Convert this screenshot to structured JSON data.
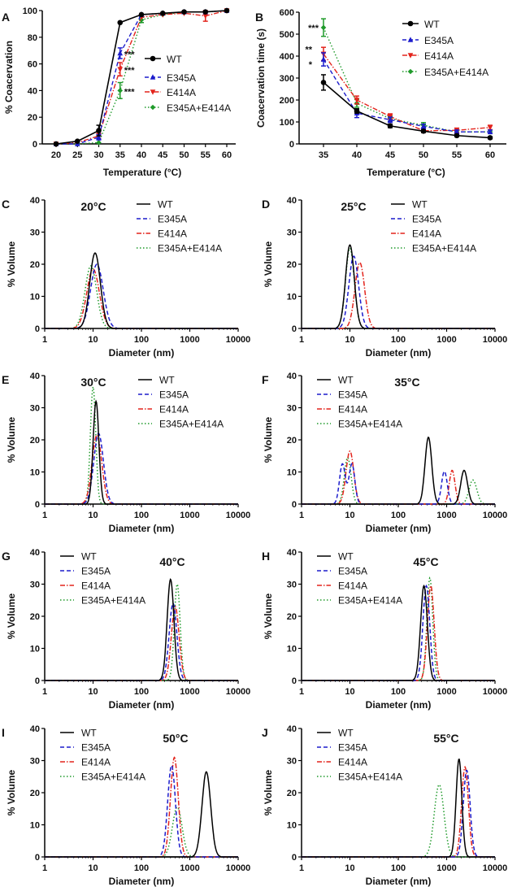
{
  "colors": {
    "WT": "#000000",
    "E345A": "#1c1ccc",
    "E414A": "#e3241c",
    "E345A+E414A": "#1f9a2a"
  },
  "series_names": [
    "WT",
    "E345A",
    "E414A",
    "E345A+E414A"
  ],
  "chart_data": [
    {
      "panel": "A",
      "type": "line",
      "xlabel": "Temperature (°C)",
      "ylabel": "% Coacervation",
      "x": [
        20,
        25,
        30,
        35,
        40,
        45,
        50,
        55,
        60
      ],
      "xticks": [
        20,
        25,
        30,
        35,
        40,
        45,
        50,
        55,
        60
      ],
      "ylim": [
        0,
        100
      ],
      "yticks": [
        0,
        20,
        40,
        60,
        80,
        100
      ],
      "legend": "center-right",
      "series": [
        {
          "name": "WT",
          "values": [
            0,
            2,
            10,
            91,
            97,
            98,
            99,
            99,
            100
          ],
          "errors": [
            0,
            1,
            4,
            1,
            1,
            1,
            1,
            1,
            1
          ]
        },
        {
          "name": "E345A",
          "values": [
            0,
            0,
            5,
            68,
            97,
            98,
            99,
            99,
            100
          ],
          "errors": [
            0,
            0,
            2,
            4,
            1,
            1,
            1,
            1,
            1
          ]
        },
        {
          "name": "E414A",
          "values": [
            0,
            1,
            6,
            56,
            95,
            97,
            98,
            96,
            100
          ],
          "errors": [
            0,
            0,
            2,
            5,
            1,
            1,
            1,
            4,
            1
          ]
        },
        {
          "name": "E345A+E414A",
          "values": [
            0,
            0,
            1,
            40,
            93,
            97,
            99,
            99,
            100
          ],
          "errors": [
            0,
            0,
            1,
            6,
            2,
            1,
            1,
            1,
            1
          ]
        }
      ],
      "annotations": [
        {
          "x": 35,
          "y": 68,
          "text": "***"
        },
        {
          "x": 35,
          "y": 56,
          "text": "***"
        },
        {
          "x": 35,
          "y": 40,
          "text": "***"
        }
      ]
    },
    {
      "panel": "B",
      "type": "line",
      "xlabel": "Temperature (°C)",
      "ylabel": "Coacervation time (s)",
      "x": [
        35,
        40,
        45,
        50,
        55,
        60
      ],
      "xticks": [
        35,
        40,
        45,
        50,
        55,
        60
      ],
      "ylim": [
        0,
        600
      ],
      "yticks": [
        0,
        100,
        200,
        300,
        400,
        500,
        600
      ],
      "legend": "top-right",
      "series": [
        {
          "name": "WT",
          "values": [
            280,
            150,
            82,
            58,
            38,
            28
          ],
          "errors": [
            35,
            10,
            8,
            6,
            5,
            5
          ]
        },
        {
          "name": "E345A",
          "values": [
            385,
            140,
            110,
            80,
            55,
            55
          ],
          "errors": [
            30,
            20,
            12,
            10,
            8,
            8
          ]
        },
        {
          "name": "E414A",
          "values": [
            410,
            200,
            125,
            60,
            62,
            75
          ],
          "errors": [
            30,
            18,
            12,
            8,
            10,
            10
          ]
        },
        {
          "name": "E345A+E414A",
          "values": [
            530,
            185,
            115,
            85,
            55,
            55
          ],
          "errors": [
            40,
            18,
            12,
            12,
            8,
            8
          ]
        }
      ],
      "annotations": [
        {
          "x": 35,
          "y": 530,
          "text": "***"
        },
        {
          "x": 35,
          "y": 410,
          "text": "**"
        },
        {
          "x": 35,
          "y": 385,
          "text": "*"
        }
      ]
    },
    {
      "panel": "C",
      "type": "line",
      "title": "20°C",
      "xlabel": "Diameter (nm)",
      "ylabel": "% Volume",
      "xscale": "log",
      "xlim": [
        1,
        10000
      ],
      "xticks": [
        1,
        10,
        100,
        1000,
        10000
      ],
      "ylim": [
        0,
        40
      ],
      "yticks": [
        0,
        10,
        20,
        30,
        40
      ],
      "legend": "top-right",
      "series": [
        {
          "name": "WT",
          "peaks": [
            [
              11,
              23.5,
              0.11
            ]
          ]
        },
        {
          "name": "E345A",
          "peaks": [
            [
              12,
              20,
              0.13
            ]
          ]
        },
        {
          "name": "E414A",
          "peaks": [
            [
              10,
              18.5,
              0.13
            ]
          ]
        },
        {
          "name": "E345A+E414A",
          "peaks": [
            [
              9,
              19.5,
              0.12
            ]
          ]
        }
      ]
    },
    {
      "panel": "D",
      "type": "line",
      "title": "25°C",
      "xlabel": "Diameter (nm)",
      "ylabel": "% Volume",
      "xscale": "log",
      "xlim": [
        1,
        10000
      ],
      "xticks": [
        1,
        10,
        100,
        1000,
        10000
      ],
      "ylim": [
        0,
        40
      ],
      "yticks": [
        0,
        10,
        20,
        30,
        40
      ],
      "legend": "top-right",
      "series": [
        {
          "name": "WT",
          "peaks": [
            [
              10,
              26,
              0.09
            ]
          ]
        },
        {
          "name": "E345A",
          "peaks": [
            [
              12,
              22.5,
              0.1
            ]
          ]
        },
        {
          "name": "E414A",
          "peaks": [
            [
              16,
              20.5,
              0.1
            ]
          ]
        },
        {
          "name": "E345A+E414A",
          "peaks": [
            [
              10,
              25,
              0.09
            ]
          ]
        }
      ]
    },
    {
      "panel": "E",
      "type": "line",
      "title": "30°C",
      "xlabel": "Diameter (nm)",
      "ylabel": "% Volume",
      "xscale": "log",
      "xlim": [
        1,
        10000
      ],
      "xticks": [
        1,
        10,
        100,
        1000,
        10000
      ],
      "ylim": [
        0,
        40
      ],
      "yticks": [
        0,
        10,
        20,
        30,
        40
      ],
      "legend": "top-right",
      "series": [
        {
          "name": "WT",
          "peaks": [
            [
              11.5,
              32,
              0.06
            ]
          ]
        },
        {
          "name": "E345A",
          "peaks": [
            [
              13,
              22,
              0.1
            ]
          ]
        },
        {
          "name": "E414A",
          "peaks": [
            [
              12,
              21.5,
              0.1
            ]
          ]
        },
        {
          "name": "E345A+E414A",
          "peaks": [
            [
              10,
              36.5,
              0.055
            ]
          ]
        }
      ]
    },
    {
      "panel": "F",
      "type": "line",
      "title": "35°C",
      "xlabel": "Diameter (nm)",
      "ylabel": "% Volume",
      "xscale": "log",
      "xlim": [
        1,
        10000
      ],
      "xticks": [
        1,
        10,
        100,
        1000,
        10000
      ],
      "ylim": [
        0,
        40
      ],
      "yticks": [
        0,
        10,
        20,
        30,
        40
      ],
      "legend": "top-left",
      "series": [
        {
          "name": "WT",
          "peaks": [
            [
              420,
              20.8,
              0.07
            ],
            [
              2300,
              10.5,
              0.07
            ]
          ]
        },
        {
          "name": "E345A",
          "peaks": [
            [
              7,
              12.5,
              0.06
            ],
            [
              11,
              12.5,
              0.06
            ],
            [
              900,
              10.2,
              0.06
            ]
          ]
        },
        {
          "name": "E414A",
          "peaks": [
            [
              10,
              16.5,
              0.08
            ],
            [
              1300,
              10.5,
              0.06
            ]
          ]
        },
        {
          "name": "E345A+E414A",
          "peaks": [
            [
              9,
              14.5,
              0.07
            ],
            [
              3500,
              7.5,
              0.08
            ]
          ]
        }
      ]
    },
    {
      "panel": "G",
      "type": "line",
      "title": "40°C",
      "xlabel": "Diameter (nm)",
      "ylabel": "% Volume",
      "xscale": "log",
      "xlim": [
        1,
        10000
      ],
      "xticks": [
        1,
        10,
        100,
        1000,
        10000
      ],
      "ylim": [
        0,
        40
      ],
      "yticks": [
        0,
        10,
        20,
        30,
        40
      ],
      "legend": "top-left",
      "series": [
        {
          "name": "WT",
          "peaks": [
            [
              400,
              31.5,
              0.07
            ]
          ]
        },
        {
          "name": "E345A",
          "peaks": [
            [
              450,
              24,
              0.08
            ]
          ]
        },
        {
          "name": "E414A",
          "peaks": [
            [
              500,
              23,
              0.08
            ]
          ]
        },
        {
          "name": "E345A+E414A",
          "peaks": [
            [
              550,
              30,
              0.06
            ]
          ]
        }
      ]
    },
    {
      "panel": "H",
      "type": "line",
      "title": "45°C",
      "xlabel": "Diameter (nm)",
      "ylabel": "% Volume",
      "xscale": "log",
      "xlim": [
        1,
        10000
      ],
      "xticks": [
        1,
        10,
        100,
        1000,
        10000
      ],
      "ylim": [
        0,
        40
      ],
      "yticks": [
        0,
        10,
        20,
        30,
        40
      ],
      "legend": "top-left",
      "series": [
        {
          "name": "WT",
          "peaks": [
            [
              340,
              29.5,
              0.07
            ]
          ]
        },
        {
          "name": "E345A",
          "peaks": [
            [
              380,
              29.5,
              0.07
            ]
          ]
        },
        {
          "name": "E414A",
          "peaks": [
            [
              470,
              29.5,
              0.07
            ]
          ]
        },
        {
          "name": "E345A+E414A",
          "peaks": [
            [
              450,
              32,
              0.06
            ]
          ]
        }
      ]
    },
    {
      "panel": "I",
      "type": "line",
      "title": "50°C",
      "xlabel": "Diameter (nm)",
      "ylabel": "% Volume",
      "xscale": "log",
      "xlim": [
        1,
        10000
      ],
      "xticks": [
        1,
        10,
        100,
        1000,
        10000
      ],
      "ylim": [
        0,
        40
      ],
      "yticks": [
        0,
        10,
        20,
        30,
        40
      ],
      "legend": "top-left",
      "series": [
        {
          "name": "WT",
          "peaks": [
            [
              2200,
              26.5,
              0.09
            ]
          ]
        },
        {
          "name": "E345A",
          "peaks": [
            [
              420,
              28.5,
              0.08
            ]
          ]
        },
        {
          "name": "E414A",
          "peaks": [
            [
              480,
              31,
              0.08
            ]
          ]
        },
        {
          "name": "E345A+E414A",
          "peaks": [
            [
              550,
              15.5,
              0.1
            ]
          ]
        }
      ]
    },
    {
      "panel": "J",
      "type": "line",
      "title": "55°C",
      "xlabel": "Diameter (nm)",
      "ylabel": "% Volume",
      "xscale": "log",
      "xlim": [
        1,
        10000
      ],
      "xticks": [
        1,
        10,
        100,
        1000,
        10000
      ],
      "ylim": [
        0,
        40
      ],
      "yticks": [
        0,
        10,
        20,
        30,
        40
      ],
      "legend": "top-left",
      "series": [
        {
          "name": "WT",
          "peaks": [
            [
              1800,
              30.5,
              0.06
            ]
          ]
        },
        {
          "name": "E345A",
          "peaks": [
            [
              2600,
              27,
              0.07
            ]
          ]
        },
        {
          "name": "E414A",
          "peaks": [
            [
              2400,
              28,
              0.07
            ]
          ]
        },
        {
          "name": "E345A+E414A",
          "peaks": [
            [
              700,
              22.5,
              0.1
            ]
          ]
        }
      ]
    }
  ]
}
